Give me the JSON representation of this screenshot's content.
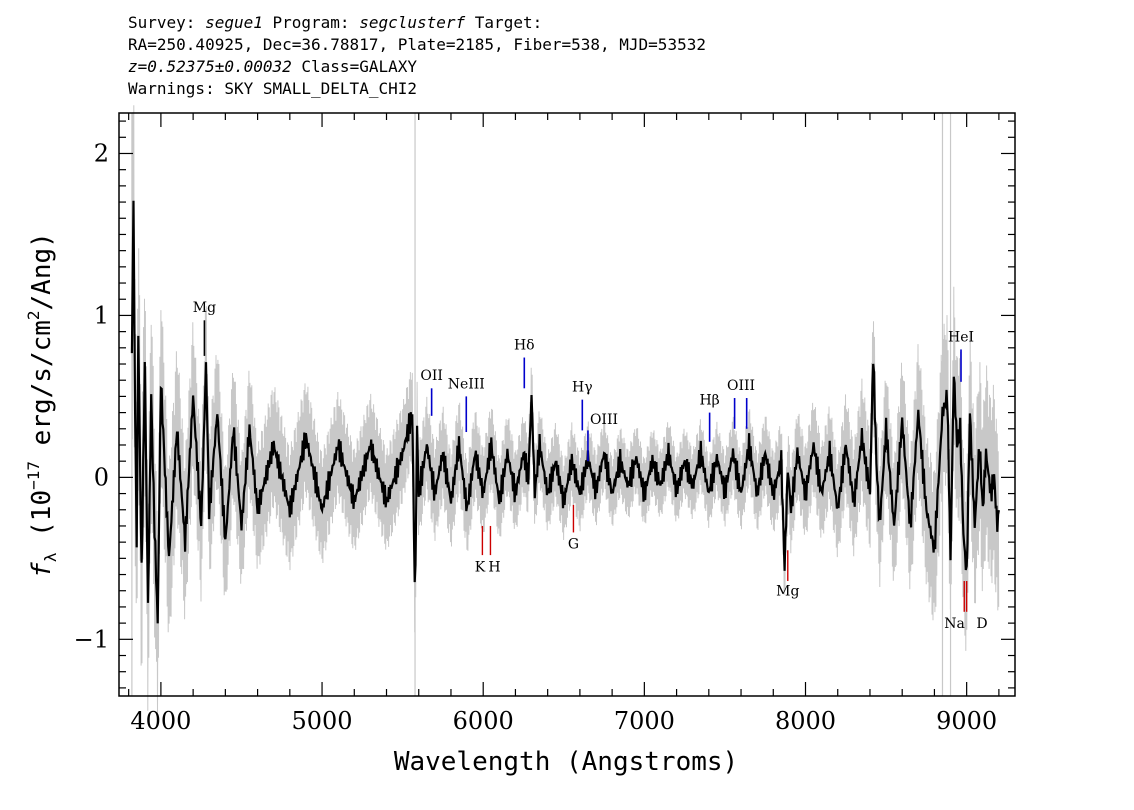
{
  "header": {
    "line1": {
      "survey_label": "Survey: ",
      "survey": "segue1",
      "program_label": " Program: ",
      "program": "segclusterf",
      "target_label": " Target:"
    },
    "line2": "RA=250.40925, Dec=36.78817, Plate=2185, Fiber=538, MJD=53532",
    "line3": {
      "redshift": "z=0.52375±0.00032",
      "class": " Class=GALAXY"
    },
    "line4": "Warnings: SKY SMALL_DELTA_CHI2"
  },
  "chart_data": {
    "type": "line",
    "title": "",
    "xlabel": "Wavelength (Angstroms)",
    "ylabel_parts": {
      "prefix": "f",
      "sub": "λ",
      "mid": " (10",
      "exp": "−17",
      "mid2": " erg/s/cm",
      "exp2": "2",
      "suffix": "/Ang)"
    },
    "xlim": [
      3740,
      9300
    ],
    "ylim": [
      -1.35,
      2.25
    ],
    "x_ticks": [
      4000,
      5000,
      6000,
      7000,
      8000,
      9000
    ],
    "x_tick_labels": [
      "4000",
      "5000",
      "6000",
      "7000",
      "8000",
      "9000"
    ],
    "y_ticks": [
      -1,
      0,
      1,
      2
    ],
    "y_tick_labels": [
      "−1",
      "0",
      "1",
      "2"
    ],
    "x_minor_step": 200,
    "y_minor_step": 0.1,
    "series": [
      {
        "role": "flux",
        "color": "#000000",
        "x": [
          3820,
          3830,
          3840,
          3850,
          3860,
          3880,
          3900,
          3920,
          3940,
          3960,
          3980,
          4000,
          4050,
          4100,
          4150,
          4200,
          4250,
          4280,
          4300,
          4350,
          4400,
          4450,
          4500,
          4550,
          4600,
          4700,
          4800,
          4900,
          5000,
          5100,
          5200,
          5300,
          5400,
          5500,
          5560,
          5577,
          5590,
          5600,
          5650,
          5700,
          5750,
          5800,
          5850,
          5900,
          5950,
          6000,
          6050,
          6100,
          6150,
          6200,
          6250,
          6280,
          6300,
          6320,
          6350,
          6400,
          6450,
          6500,
          6550,
          6600,
          6650,
          6700,
          6750,
          6800,
          6850,
          6900,
          6950,
          7000,
          7050,
          7100,
          7150,
          7200,
          7250,
          7300,
          7350,
          7400,
          7450,
          7500,
          7550,
          7600,
          7650,
          7700,
          7750,
          7800,
          7850,
          7870,
          7890,
          7910,
          7950,
          8000,
          8050,
          8100,
          8150,
          8200,
          8250,
          8300,
          8350,
          8400,
          8420,
          8440,
          8460,
          8500,
          8550,
          8600,
          8650,
          8700,
          8750,
          8800,
          8850,
          8880,
          8900,
          8920,
          8940,
          8960,
          8980,
          9000,
          9020,
          9050,
          9080,
          9100,
          9120,
          9150,
          9170,
          9190,
          9200
        ],
        "y": [
          0.8,
          1.7,
          0.4,
          -0.4,
          0.9,
          -0.6,
          0.7,
          -0.8,
          0.5,
          -0.3,
          -0.9,
          0.6,
          -0.5,
          0.3,
          -0.4,
          0.5,
          -0.3,
          0.7,
          -0.2,
          0.4,
          -0.4,
          0.3,
          -0.3,
          0.3,
          -0.2,
          0.2,
          -0.2,
          0.25,
          -0.2,
          0.2,
          -0.15,
          0.2,
          -0.15,
          0.15,
          0.4,
          -0.8,
          0.3,
          -0.1,
          0.2,
          -0.1,
          0.15,
          -0.15,
          0.2,
          -0.2,
          0.15,
          -0.1,
          0.2,
          -0.15,
          0.15,
          -0.1,
          0.15,
          0.0,
          0.5,
          -0.1,
          0.2,
          -0.1,
          0.1,
          -0.15,
          0.1,
          -0.1,
          0.12,
          -0.08,
          0.15,
          -0.1,
          0.1,
          -0.05,
          0.12,
          -0.1,
          0.1,
          -0.05,
          0.15,
          -0.08,
          0.1,
          -0.05,
          0.15,
          -0.1,
          0.12,
          -0.08,
          0.15,
          -0.1,
          0.2,
          -0.1,
          0.15,
          -0.1,
          0.1,
          -0.55,
          0.05,
          -0.2,
          0.15,
          -0.1,
          0.2,
          -0.1,
          0.15,
          -0.2,
          0.2,
          -0.15,
          0.25,
          -0.1,
          0.75,
          0.1,
          -0.3,
          0.3,
          -0.3,
          0.35,
          -0.3,
          0.4,
          -0.2,
          -0.45,
          0.4,
          0.5,
          -0.5,
          0.65,
          0.2,
          0.3,
          -0.35,
          -0.6,
          0.4,
          -0.3,
          0.2,
          -0.2,
          0.15,
          -0.1,
          0.0,
          -0.3,
          -0.2
        ]
      },
      {
        "role": "error",
        "color": "#c8c8c8",
        "x": [
          3800,
          3900,
          4000,
          4200,
          4400,
          4600,
          4800,
          5000,
          5200,
          5400,
          5600,
          5800,
          6000,
          6200,
          6400,
          6600,
          6800,
          7000,
          7200,
          7400,
          7600,
          7800,
          8000,
          8200,
          8400,
          8600,
          8800,
          9000,
          9200
        ],
        "y": [
          1.0,
          0.75,
          0.6,
          0.5,
          0.45,
          0.4,
          0.38,
          0.35,
          0.33,
          0.32,
          0.3,
          0.3,
          0.28,
          0.26,
          0.25,
          0.24,
          0.22,
          0.22,
          0.22,
          0.22,
          0.24,
          0.26,
          0.3,
          0.32,
          0.38,
          0.42,
          0.5,
          0.55,
          0.6
        ]
      }
    ],
    "sky_lines": [
      3820,
      5577,
      8850,
      8900
    ],
    "emission_lines": [
      {
        "label": "Mg",
        "wave": 4270,
        "color": "#000000"
      },
      {
        "label": "OII",
        "wave": 5680,
        "color": "#0000cc"
      },
      {
        "label": "NeIII",
        "wave": 5895,
        "color": "#0000cc"
      },
      {
        "label": "Hδ",
        "wave": 6255,
        "color": "#0000cc"
      },
      {
        "label": "Hγ",
        "wave": 6615,
        "color": "#0000cc"
      },
      {
        "label": "OIII",
        "wave": 6650,
        "color": "#0000cc"
      },
      {
        "label": "Hβ",
        "wave": 7405,
        "color": "#0000cc"
      },
      {
        "label": "OIII",
        "wave": 7560,
        "color": "#0000cc"
      },
      {
        "label": "OIII",
        "wave": 7635,
        "color": "#0000cc"
      },
      {
        "label": "HeI",
        "wave": 8965,
        "color": "#0000cc"
      }
    ],
    "absorption_lines": [
      {
        "label": "K",
        "wave": 5995,
        "color": "#cc0000"
      },
      {
        "label": "H",
        "wave": 6045,
        "color": "#cc0000"
      },
      {
        "label": "G",
        "wave": 6560,
        "color": "#cc0000"
      },
      {
        "label": "Mg",
        "wave": 7890,
        "color": "#cc0000"
      },
      {
        "label": "Na",
        "wave": 8985,
        "color": "#cc0000"
      },
      {
        "label": "D",
        "wave": 9000,
        "color": "#cc0000"
      }
    ]
  }
}
